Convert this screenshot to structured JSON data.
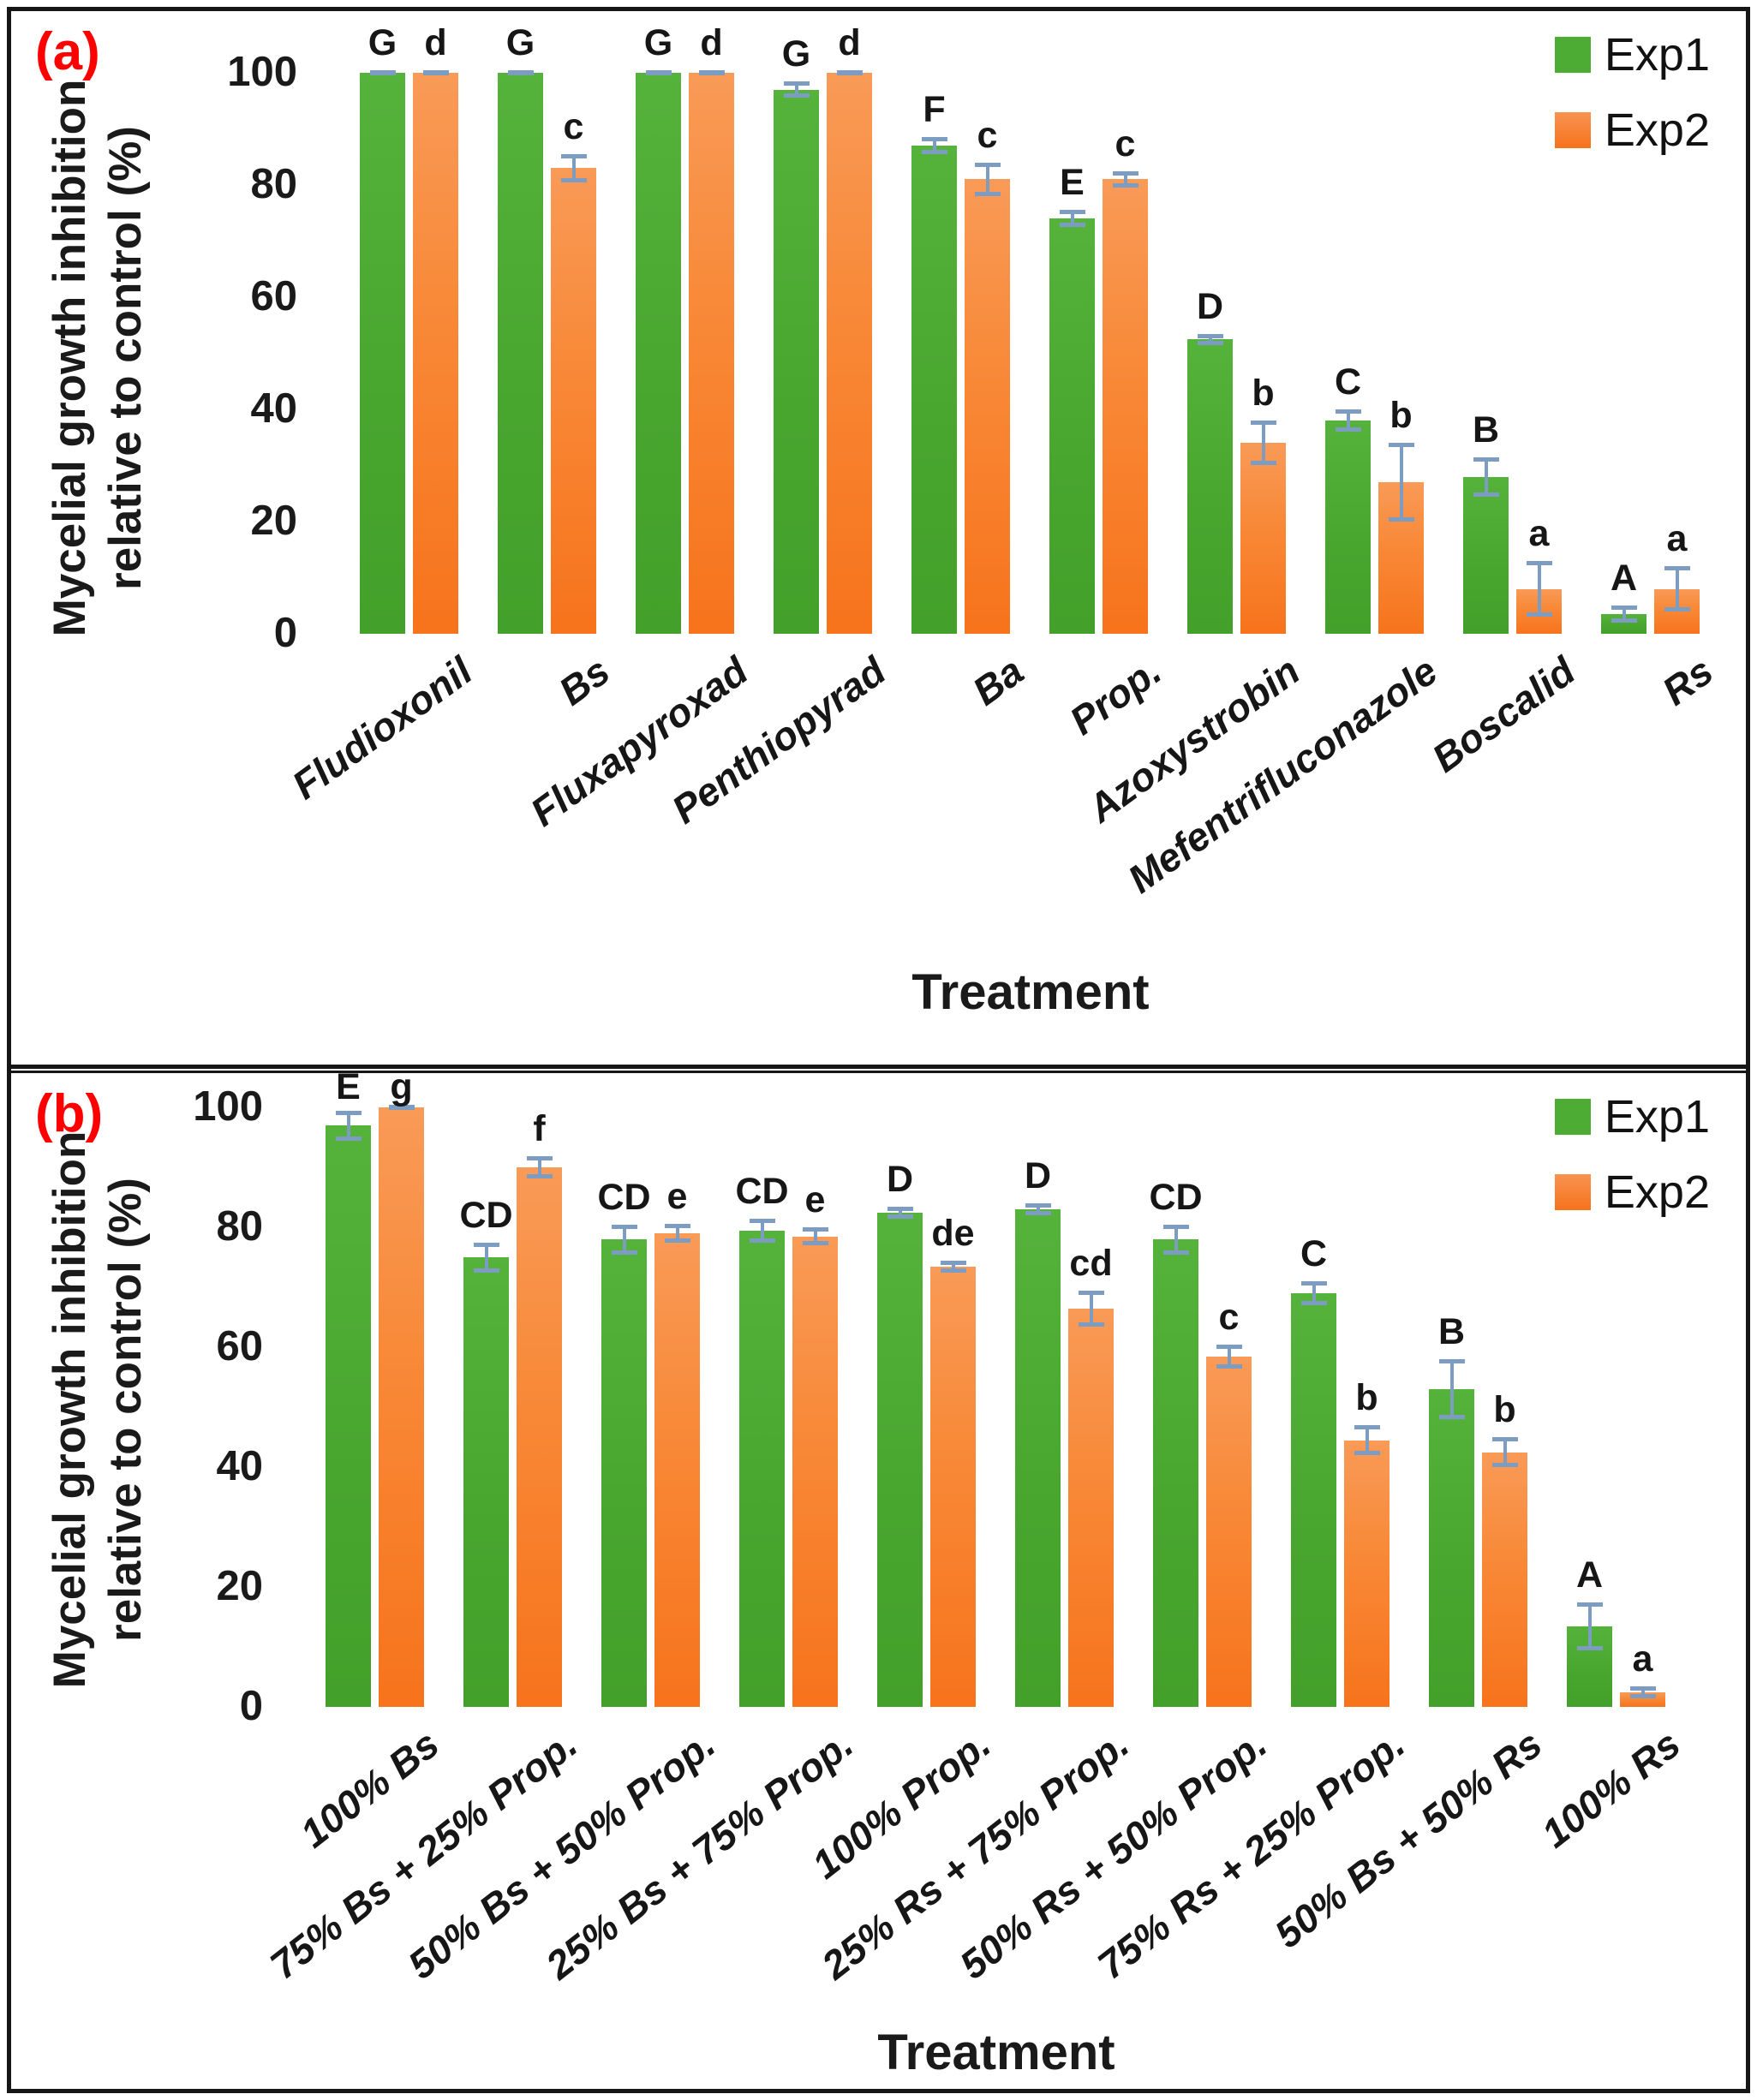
{
  "colors": {
    "exp1_green": "#4DAC33",
    "exp2_orange": "#F7731C",
    "error_bar_blue": "#7D9CC2",
    "panel_tag_red": "#FD0000",
    "text_black": "#161616"
  },
  "panels": [
    {
      "tag": "(a)",
      "y_axis_title_line1": "Mycelial growth inhibition",
      "y_axis_title_line2": "relative to control (%)",
      "x_axis_title": "Treatment",
      "legend": [
        {
          "label": "Exp1"
        },
        {
          "label": "Exp2"
        }
      ]
    },
    {
      "tag": "(b)",
      "y_axis_title_line1": "Mycelial growth inhibition",
      "y_axis_title_line2": "relative to control (%)",
      "x_axis_title": "Treatment",
      "legend": [
        {
          "label": "Exp1"
        },
        {
          "label": "Exp2"
        }
      ]
    }
  ],
  "chart_data": [
    {
      "type": "bar",
      "panel": "(a)",
      "title": "",
      "xlabel": "Treatment",
      "ylabel": "Mycelial growth inhibition relative to control (%)",
      "ylim": [
        0,
        100
      ],
      "yticks": [
        0,
        20,
        40,
        60,
        80,
        100
      ],
      "grid": false,
      "legend_position": "top-right",
      "categories": [
        "Fludioxonil",
        "Bs",
        "Fluxapyroxad",
        "Penthiopyrad",
        "Ba",
        "Prop.",
        "Azoxystrobin",
        "Mefentrifluconazole",
        "Boscalid",
        "Rs"
      ],
      "series": [
        {
          "name": "Exp1",
          "values": [
            100,
            100,
            100,
            97,
            87,
            74,
            52.5,
            38,
            28,
            3.5
          ],
          "errors": [
            0.5,
            0.5,
            0.5,
            1.5,
            1.5,
            1.5,
            1,
            2,
            3.5,
            1.5
          ],
          "letters": [
            "G",
            "G",
            "G",
            "G",
            "F",
            "E",
            "D",
            "C",
            "B",
            "A"
          ]
        },
        {
          "name": "Exp2",
          "values": [
            100,
            83,
            100,
            100,
            81,
            81,
            34,
            27,
            8,
            8
          ],
          "errors": [
            0.4,
            2.5,
            0.4,
            0.4,
            3,
            1.5,
            4,
            7,
            5,
            4
          ],
          "letters": [
            "d",
            "c",
            "d",
            "d",
            "c",
            "c",
            "b",
            "b",
            "a",
            "a"
          ]
        }
      ]
    },
    {
      "type": "bar",
      "panel": "(b)",
      "title": "",
      "xlabel": "Treatment",
      "ylabel": "Mycelial growth inhibition relative to control (%)",
      "ylim": [
        0,
        100
      ],
      "yticks": [
        0,
        20,
        40,
        60,
        80,
        100
      ],
      "grid": false,
      "legend_position": "top-right",
      "categories": [
        "100% Bs",
        "75% Bs + 25% Prop.",
        "50% Bs + 50% Prop.",
        "25% Bs + 75% Prop.",
        "100% Prop.",
        "25% Rs + 75% Prop.",
        "50% Rs + 50% Prop.",
        "75% Rs + 25% Prop.",
        "50% Bs + 50% Rs",
        "100% Rs"
      ],
      "series": [
        {
          "name": "Exp1",
          "values": [
            97,
            75,
            78,
            79.5,
            82.5,
            83,
            78,
            69,
            53,
            13.5
          ],
          "errors": [
            2.5,
            2.5,
            2.5,
            2,
            1,
            1,
            2.5,
            2,
            5,
            4
          ],
          "letters": [
            "E",
            "CD",
            "CD",
            "CD",
            "D",
            "D",
            "CD",
            "C",
            "B",
            "A"
          ]
        },
        {
          "name": "Exp2",
          "values": [
            100,
            90,
            79,
            78.5,
            73.5,
            66.5,
            58.5,
            44.5,
            42.5,
            2.5
          ],
          "errors": [
            0.4,
            1.9,
            1.6,
            1.5,
            1,
            3,
            2,
            2.5,
            2.5,
            1
          ],
          "letters": [
            "g",
            "f",
            "e",
            "e",
            "de",
            "cd",
            "c",
            "b",
            "b",
            "a"
          ]
        }
      ]
    }
  ]
}
